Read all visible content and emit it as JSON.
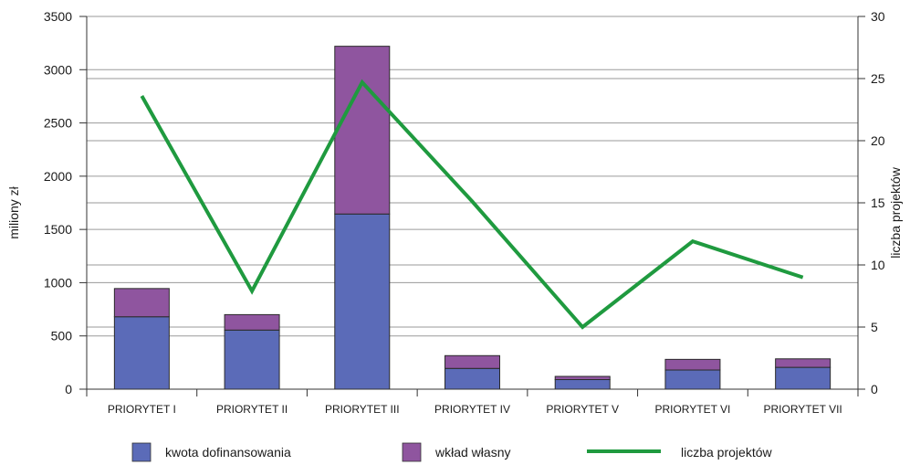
{
  "chart_data": {
    "type": "bar",
    "stacked": true,
    "categories": [
      "PRIORYTET I",
      "PRIORYTET II",
      "PRIORYTET III",
      "PRIORYTET IV",
      "PRIORYTET V",
      "PRIORYTET VI",
      "PRIORYTET VII"
    ],
    "series": [
      {
        "name": "kwota dofinansowania",
        "type": "bar",
        "axis": "left",
        "color": "#5b6bb8",
        "values": [
          680,
          555,
          1645,
          195,
          90,
          180,
          205
        ]
      },
      {
        "name": "wkład własny",
        "type": "bar",
        "axis": "left",
        "color": "#8f559f",
        "values": [
          265,
          145,
          1575,
          120,
          30,
          100,
          80
        ]
      },
      {
        "name": "liczba projektów",
        "type": "line",
        "axis": "right",
        "color": "#1f9a3f",
        "values": [
          23.6,
          7.9,
          24.7,
          15.1,
          5.0,
          11.9,
          9.0
        ]
      }
    ],
    "ylabel": "miliony zł",
    "ylabel_right": "liczba projektów",
    "ylim": [
      0,
      3500
    ],
    "ylim_right": [
      0,
      30
    ],
    "yticks": [
      0,
      500,
      1000,
      1500,
      2000,
      2500,
      3000,
      3500
    ],
    "yticks_right": [
      0,
      5,
      10,
      15,
      20,
      25,
      30
    ],
    "grid": true,
    "legend_position": "bottom"
  }
}
